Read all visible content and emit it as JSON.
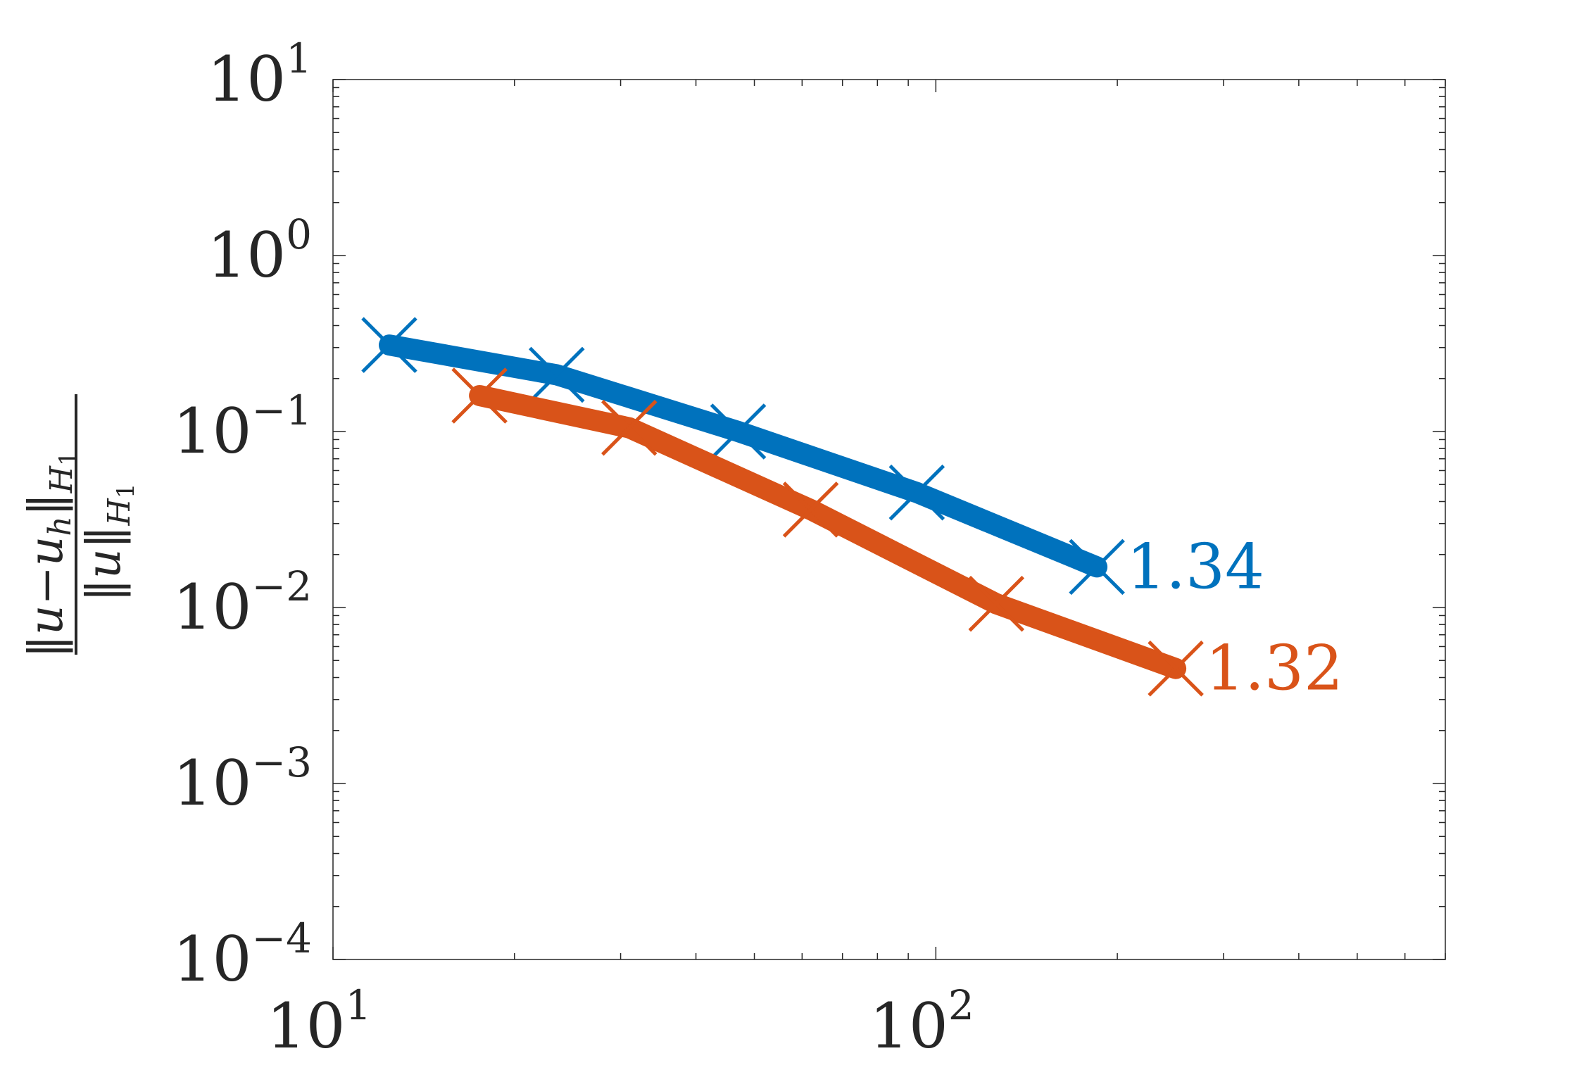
{
  "chart_data": {
    "type": "line",
    "title": "",
    "xlabel": "",
    "ylabel": "‖u−u_h‖_H1 / ‖u‖_H1",
    "ylabel_num": "‖u−u",
    "ylabel_num_sub": "h",
    "ylabel_num_norm": "‖",
    "ylabel_num_normsub": "H",
    "ylabel_num_normsub2": "1",
    "ylabel_den": "‖u‖",
    "ylabel_den_sub": "H",
    "ylabel_den_sub2": "1",
    "x_scale": "log",
    "y_scale": "log",
    "xlim": [
      10,
      700
    ],
    "ylim": [
      0.0001,
      10
    ],
    "x_ticks": [
      {
        "base": "10",
        "exp": "1",
        "value": 10
      },
      {
        "base": "10",
        "exp": "2",
        "value": 100
      }
    ],
    "y_ticks": [
      {
        "base": "10",
        "exp": "1",
        "value": 10
      },
      {
        "base": "10",
        "exp": "0",
        "value": 1
      },
      {
        "base": "10",
        "exp": "−1",
        "value": 0.1
      },
      {
        "base": "10",
        "exp": "−2",
        "value": 0.01
      },
      {
        "base": "10",
        "exp": "−3",
        "value": 0.001
      },
      {
        "base": "10",
        "exp": "−4",
        "value": 0.0001
      }
    ],
    "grid": false,
    "series": [
      {
        "color": "#0072BD",
        "x": [
          12.4,
          23.5,
          47,
          93,
          185
        ],
        "y": [
          0.31,
          0.21,
          0.1,
          0.045,
          0.017
        ],
        "annotation": "1.34"
      },
      {
        "color": "#D95319",
        "x": [
          17.5,
          31,
          62,
          126,
          250
        ],
        "y": [
          0.16,
          0.105,
          0.036,
          0.0105,
          0.0045
        ],
        "annotation": "1.32"
      }
    ]
  }
}
